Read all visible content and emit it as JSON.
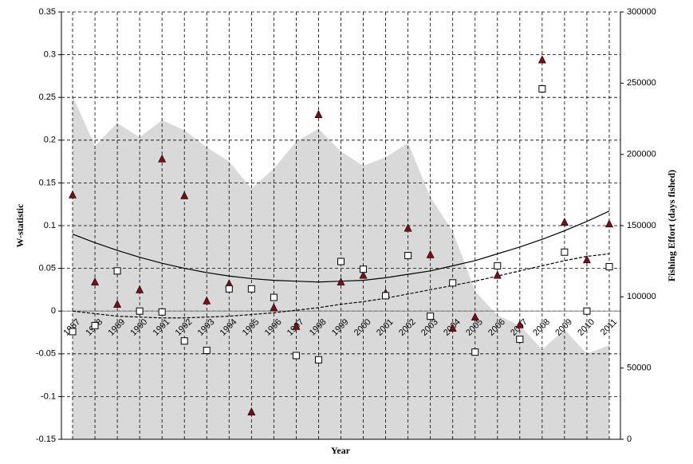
{
  "chart_data": {
    "type": "combo",
    "xlabel": "Year",
    "ylabel": "W-statistic",
    "y2label": "Fishing Effort  (days fished)",
    "x": [
      1987,
      1988,
      1989,
      1990,
      1991,
      1992,
      1993,
      1994,
      1995,
      1996,
      1997,
      1998,
      1999,
      2000,
      2001,
      2002,
      2003,
      2004,
      2005,
      2006,
      2007,
      2008,
      2009,
      2010,
      2011
    ],
    "xlim": [
      1986.5,
      2011.5
    ],
    "xticks": [
      1987,
      1988,
      1989,
      1990,
      1991,
      1992,
      1993,
      1994,
      1995,
      1996,
      1997,
      1998,
      1999,
      2000,
      2001,
      2002,
      2003,
      2004,
      2005,
      2006,
      2007,
      2008,
      2009,
      2010,
      2011
    ],
    "ylim": [
      -0.15,
      0.35
    ],
    "yticks": [
      -0.15,
      -0.1,
      -0.05,
      0,
      0.05,
      0.1,
      0.15,
      0.2,
      0.25,
      0.3,
      0.35
    ],
    "y2lim": [
      0,
      300000
    ],
    "y2ticks": [
      0,
      50000,
      100000,
      150000,
      200000,
      250000,
      300000
    ],
    "grid": true,
    "series": [
      {
        "type": "area",
        "axis": "y2",
        "color": "#d9d9d9",
        "values": [
          241000,
          206000,
          222000,
          212000,
          224000,
          217000,
          205000,
          195000,
          176000,
          190000,
          209000,
          218000,
          202000,
          192000,
          198000,
          208000,
          170000,
          146000,
          104000,
          87000,
          80000,
          63000,
          77000,
          60000,
          66000
        ]
      },
      {
        "type": "line",
        "color": "#000000",
        "dash": false,
        "values": [
          0.09,
          0.08,
          0.071,
          0.063,
          0.056,
          0.05,
          0.045,
          0.041,
          0.038,
          0.036,
          0.035,
          0.034,
          0.035,
          0.036,
          0.039,
          0.043,
          0.047,
          0.053,
          0.059,
          0.067,
          0.075,
          0.084,
          0.094,
          0.105,
          0.117
        ]
      },
      {
        "type": "line",
        "color": "#000000",
        "dash": true,
        "values": [
          0.0,
          -0.003,
          -0.006,
          -0.007,
          -0.008,
          -0.008,
          -0.007,
          -0.006,
          -0.004,
          -0.002,
          0.001,
          0.004,
          0.008,
          0.011,
          0.015,
          0.02,
          0.025,
          0.03,
          0.035,
          0.041,
          0.047,
          0.053,
          0.059,
          0.064,
          0.067
        ]
      },
      {
        "type": "scatter",
        "marker": "triangle",
        "color": "#7b1010",
        "values": [
          0.136,
          0.034,
          0.008,
          0.025,
          0.178,
          0.135,
          0.012,
          0.032,
          -0.118,
          0.004,
          -0.018,
          0.23,
          0.034,
          0.042,
          0.021,
          0.097,
          0.066,
          -0.02,
          -0.007,
          0.042,
          -0.016,
          0.294,
          0.104,
          0.06,
          0.102
        ]
      },
      {
        "type": "scatter",
        "marker": "square",
        "color": "#ffffff",
        "values": [
          -0.024,
          -0.017,
          0.047,
          0.0,
          -0.001,
          -0.035,
          -0.046,
          0.026,
          0.026,
          0.016,
          -0.052,
          -0.057,
          0.058,
          0.049,
          0.018,
          0.065,
          -0.006,
          0.033,
          -0.048,
          0.053,
          -0.033,
          0.26,
          0.069,
          0.0,
          0.052
        ]
      }
    ]
  }
}
